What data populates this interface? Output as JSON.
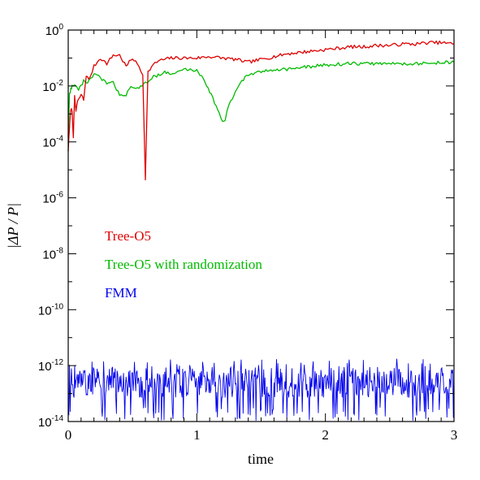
{
  "chart_data": {
    "type": "line",
    "title": "",
    "xlabel": "time",
    "ylabel": "|ΔP / P|",
    "xlim": [
      0,
      3
    ],
    "ylim_exp": [
      -14,
      0
    ],
    "y_scale": "log",
    "grid": false,
    "x_ticks": [
      {
        "value": 0,
        "label": "0"
      },
      {
        "value": 1,
        "label": "1"
      },
      {
        "value": 2,
        "label": "2"
      },
      {
        "value": 3,
        "label": "3"
      }
    ],
    "y_ticks": [
      {
        "exp": 0,
        "base": "10",
        "sup": "0"
      },
      {
        "exp": -2,
        "base": "10",
        "sup": "-2"
      },
      {
        "exp": -4,
        "base": "10",
        "sup": "-4"
      },
      {
        "exp": -6,
        "base": "10",
        "sup": "-6"
      },
      {
        "exp": -8,
        "base": "10",
        "sup": "-8"
      },
      {
        "exp": -10,
        "base": "10",
        "sup": "-10"
      },
      {
        "exp": -12,
        "base": "10",
        "sup": "-12"
      },
      {
        "exp": -14,
        "base": "10",
        "sup": "-14"
      }
    ],
    "legend_placement": "center-left",
    "series": [
      {
        "name": "Tree-O5",
        "color": "#dd0000",
        "x": [
          0.0,
          0.01,
          0.02,
          0.03,
          0.04,
          0.05,
          0.06,
          0.07,
          0.08,
          0.1,
          0.12,
          0.14,
          0.16,
          0.2,
          0.25,
          0.3,
          0.35,
          0.4,
          0.45,
          0.5,
          0.55,
          0.58,
          0.6,
          0.62,
          0.65,
          0.7,
          0.8,
          0.9,
          1.0,
          1.1,
          1.2,
          1.3,
          1.4,
          1.5,
          1.6,
          1.7,
          1.8,
          1.9,
          2.0,
          2.1,
          2.2,
          2.3,
          2.4,
          2.5,
          2.6,
          2.7,
          2.8,
          2.9,
          3.0
        ],
        "y_exp": [
          -4.3,
          -3.5,
          -2.8,
          -2.9,
          -3.8,
          -2.4,
          -2.9,
          -2.6,
          -2.5,
          -2.3,
          -2.5,
          -1.6,
          -1.8,
          -1.3,
          -1.0,
          -1.2,
          -0.9,
          -0.9,
          -1.3,
          -1.0,
          -1.3,
          -1.6,
          -5.3,
          -1.5,
          -1.3,
          -1.1,
          -1.0,
          -1.0,
          -1.0,
          -0.95,
          -1.0,
          -1.05,
          -1.15,
          -1.05,
          -0.95,
          -0.85,
          -0.8,
          -0.75,
          -0.7,
          -0.65,
          -0.6,
          -0.6,
          -0.55,
          -0.55,
          -0.5,
          -0.5,
          -0.45,
          -0.45,
          -0.5
        ]
      },
      {
        "name": "Tree-O5 with randomization",
        "color": "#00bb00",
        "x": [
          0.0,
          0.01,
          0.02,
          0.03,
          0.05,
          0.08,
          0.1,
          0.12,
          0.15,
          0.2,
          0.25,
          0.3,
          0.35,
          0.4,
          0.45,
          0.5,
          0.55,
          0.6,
          0.65,
          0.7,
          0.75,
          0.8,
          0.85,
          0.9,
          1.0,
          1.05,
          1.1,
          1.15,
          1.2,
          1.22,
          1.25,
          1.3,
          1.35,
          1.4,
          1.5,
          1.6,
          1.7,
          1.8,
          1.9,
          2.0,
          2.2,
          2.4,
          2.6,
          2.8,
          2.9,
          3.0
        ],
        "y_exp": [
          -3.8,
          -2.3,
          -2.1,
          -2.0,
          -2.0,
          -2.1,
          -2.0,
          -1.8,
          -1.9,
          -1.6,
          -1.7,
          -1.9,
          -1.9,
          -2.3,
          -2.3,
          -2.0,
          -2.1,
          -1.9,
          -1.7,
          -1.6,
          -1.5,
          -1.6,
          -1.5,
          -1.4,
          -1.45,
          -1.7,
          -2.2,
          -2.7,
          -3.3,
          -3.2,
          -2.7,
          -2.2,
          -1.8,
          -1.6,
          -1.5,
          -1.4,
          -1.4,
          -1.35,
          -1.3,
          -1.25,
          -1.2,
          -1.2,
          -1.2,
          -1.2,
          -1.15,
          -1.15
        ]
      },
      {
        "name": "FMM",
        "color": "#0000ee",
        "noise": {
          "center_exp": -12.6,
          "spread_exp": 0.55,
          "min_exp": -14,
          "max_exp": -11.75,
          "samples": 600
        }
      }
    ]
  }
}
